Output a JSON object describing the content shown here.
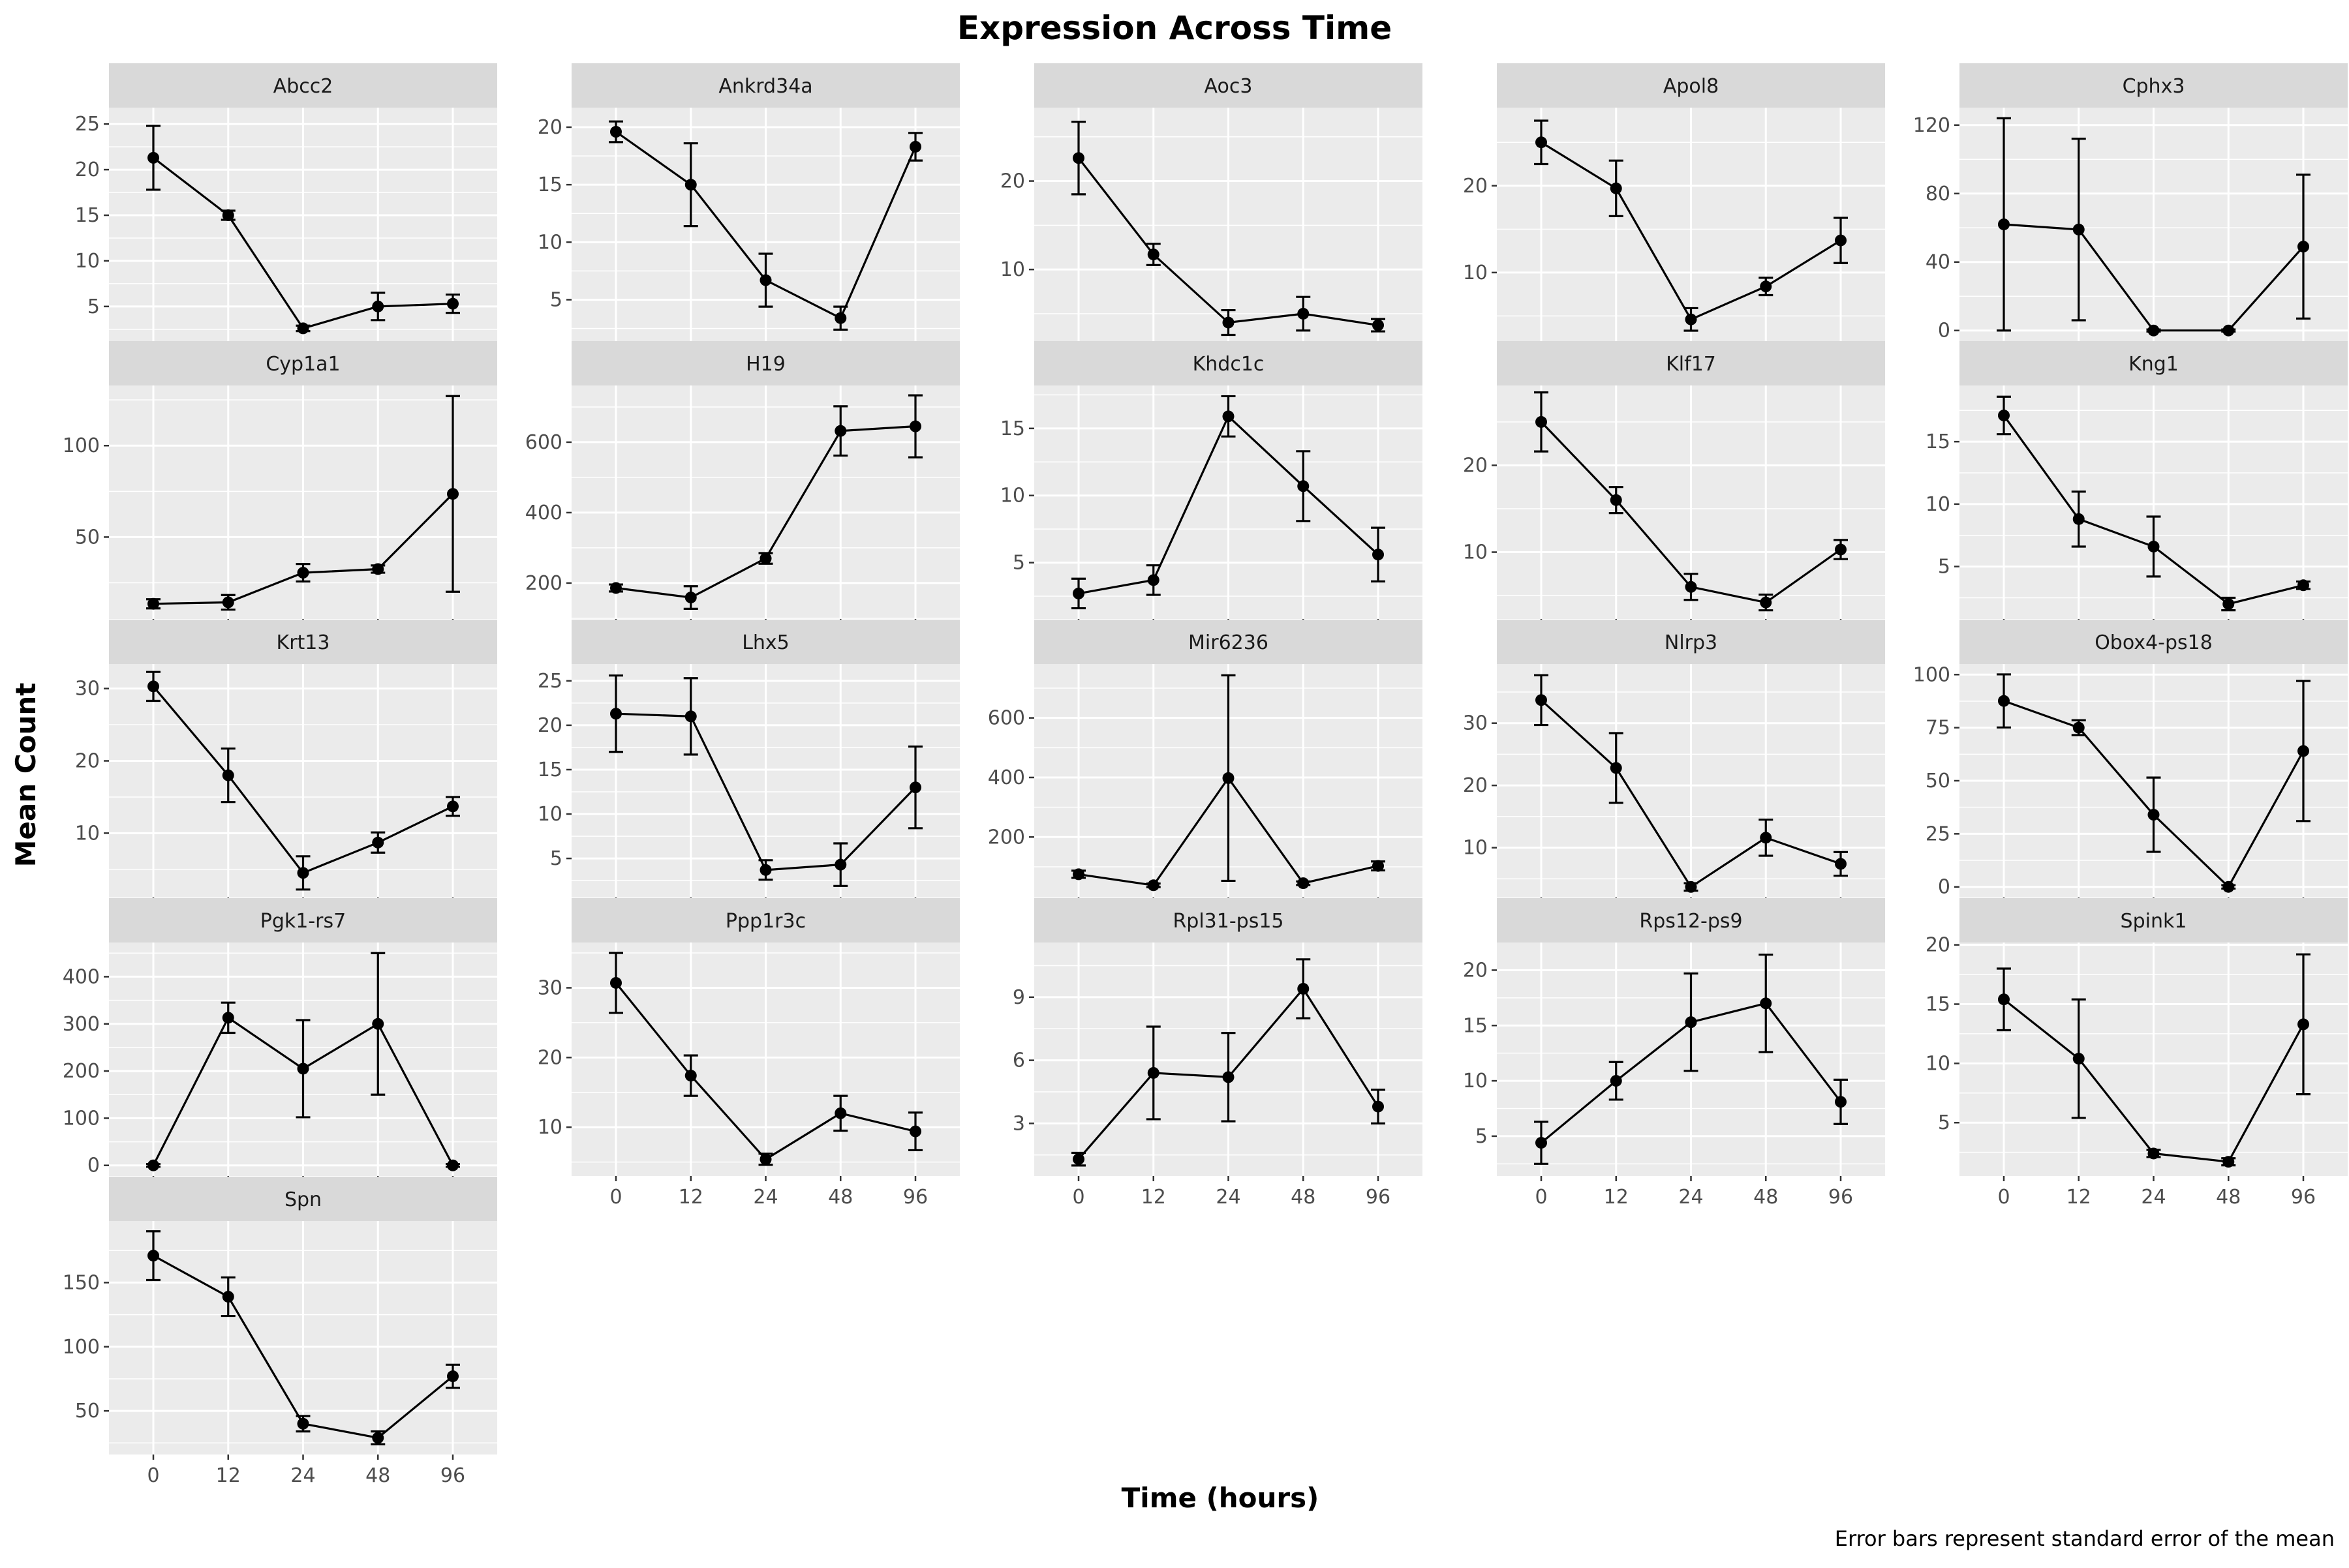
{
  "chart_data": {
    "type": "line",
    "title": "Expression Across Time",
    "xlabel": "Time (hours)",
    "ylabel": "Mean Count",
    "caption": "Error bars represent standard error of the mean",
    "x_ticks": [
      "0",
      "12",
      "24",
      "48",
      "96"
    ],
    "grid": true,
    "panels": [
      {
        "name": "Abcc2",
        "y": [
          21.3,
          15.0,
          2.6,
          5.0,
          5.3
        ],
        "err": [
          3.5,
          0.5,
          0.3,
          1.5,
          1.0
        ],
        "ylim": [
          1.2,
          26.8
        ],
        "yticks": [
          5,
          10,
          15,
          20,
          25
        ]
      },
      {
        "name": "Ankrd34a",
        "y": [
          19.6,
          15.0,
          6.7,
          3.4,
          18.3
        ],
        "err": [
          0.9,
          3.6,
          2.3,
          1.0,
          1.2
        ],
        "ylim": [
          1.4,
          21.7
        ],
        "yticks": [
          5,
          10,
          15,
          20
        ]
      },
      {
        "name": "Aoc3",
        "y": [
          22.6,
          11.7,
          4.0,
          5.0,
          3.7
        ],
        "err": [
          4.1,
          1.2,
          1.4,
          1.9,
          0.7
        ],
        "ylim": [
          1.9,
          28.3
        ],
        "yticks": [
          10,
          20
        ]
      },
      {
        "name": "Apol8",
        "y": [
          25.0,
          19.7,
          4.6,
          8.4,
          13.7
        ],
        "err": [
          2.5,
          3.2,
          1.3,
          1.0,
          2.6
        ],
        "ylim": [
          2.1,
          29.0
        ],
        "yticks": [
          10,
          20
        ]
      },
      {
        "name": "Cphx3",
        "y": [
          62.0,
          59.0,
          0.0,
          0.0,
          49.0
        ],
        "err": [
          62.0,
          53.0,
          0.6,
          0.6,
          42.0
        ],
        "ylim": [
          -6.2,
          130.2
        ],
        "yticks": [
          0,
          40,
          80,
          120
        ]
      },
      {
        "name": "Cyp1a1",
        "y": [
          13.5,
          14.3,
          30.5,
          32.5,
          73.6
        ],
        "err": [
          2.5,
          4.0,
          4.8,
          2.0,
          53.5
        ],
        "ylim": [
          5.2,
          132.9
        ],
        "yticks": [
          50,
          100
        ]
      },
      {
        "name": "H19",
        "y": [
          186.0,
          159.0,
          270.0,
          632.0,
          645.0
        ],
        "err": [
          10.0,
          32.0,
          15.0,
          70.0,
          88.0
        ],
        "ylim": [
          98.0,
          761.0
        ],
        "yticks": [
          200,
          400,
          600
        ]
      },
      {
        "name": "Khdc1c",
        "y": [
          2.7,
          3.7,
          15.9,
          10.7,
          5.6
        ],
        "err": [
          1.1,
          1.1,
          1.5,
          2.6,
          2.0
        ],
        "ylim": [
          0.8,
          18.2
        ],
        "yticks": [
          5,
          10,
          15
        ]
      },
      {
        "name": "Klf17",
        "y": [
          25.0,
          16.0,
          6.0,
          4.2,
          10.3
        ],
        "err": [
          3.4,
          1.5,
          1.5,
          0.9,
          1.1
        ],
        "ylim": [
          2.3,
          29.2
        ],
        "yticks": [
          10,
          20
        ]
      },
      {
        "name": "Kng1",
        "y": [
          17.1,
          8.8,
          6.6,
          2.0,
          3.5
        ],
        "err": [
          1.5,
          2.2,
          2.4,
          0.5,
          0.3
        ],
        "ylim": [
          0.8,
          19.5
        ],
        "yticks": [
          5,
          10,
          15
        ]
      },
      {
        "name": "Krt13",
        "y": [
          30.3,
          18.0,
          4.5,
          8.7,
          13.7
        ],
        "err": [
          2.0,
          3.7,
          2.3,
          1.4,
          1.3
        ],
        "ylim": [
          1.1,
          33.4
        ],
        "yticks": [
          10,
          20,
          30
        ]
      },
      {
        "name": "Lhx5",
        "y": [
          21.3,
          21.0,
          3.7,
          4.3,
          13.0
        ],
        "err": [
          4.3,
          4.3,
          1.1,
          2.4,
          4.6
        ],
        "ylim": [
          0.6,
          26.9
        ],
        "yticks": [
          5,
          10,
          15,
          20,
          25
        ]
      },
      {
        "name": "Mir6236",
        "y": [
          75.0,
          38.0,
          398.0,
          45.0,
          103.0
        ],
        "err": [
          12.0,
          6.0,
          345.0,
          6.0,
          15.0
        ],
        "ylim": [
          -3.0,
          781.0
        ],
        "yticks": [
          200,
          400,
          600
        ]
      },
      {
        "name": "Nlrp3",
        "y": [
          33.7,
          22.8,
          3.7,
          11.6,
          7.4
        ],
        "err": [
          4.0,
          5.6,
          0.6,
          2.9,
          1.9
        ],
        "ylim": [
          2.0,
          39.5
        ],
        "yticks": [
          10,
          20,
          30
        ]
      },
      {
        "name": "Obox4-ps18",
        "y": [
          87.6,
          75.0,
          34.0,
          0.0,
          64.0
        ],
        "err": [
          12.5,
          3.5,
          17.5,
          0.8,
          33.0
        ],
        "ylim": [
          -5.0,
          105.0
        ],
        "yticks": [
          0,
          25,
          50,
          75,
          100
        ]
      },
      {
        "name": "Pgk1-rs7",
        "y": [
          0.0,
          313.0,
          205.0,
          300.0,
          0.0
        ],
        "err": [
          3.0,
          32.0,
          103.0,
          150.0,
          3.0
        ],
        "ylim": [
          -22.5,
          472.5
        ],
        "yticks": [
          0,
          100,
          200,
          300,
          400
        ]
      },
      {
        "name": "Ppp1r3c",
        "y": [
          30.7,
          17.4,
          5.4,
          12.0,
          9.4
        ],
        "err": [
          4.3,
          2.9,
          0.8,
          2.5,
          2.7
        ],
        "ylim": [
          3.0,
          36.5
        ],
        "yticks": [
          10,
          20,
          30
        ]
      },
      {
        "name": "Rpl31-ps15",
        "y": [
          1.3,
          5.4,
          5.2,
          9.4,
          3.8
        ],
        "err": [
          0.3,
          2.2,
          2.1,
          1.4,
          0.8
        ],
        "ylim": [
          0.5,
          11.6
        ],
        "yticks": [
          3,
          6,
          9
        ]
      },
      {
        "name": "Rps12-ps9",
        "y": [
          4.4,
          10.0,
          15.3,
          17.0,
          8.1
        ],
        "err": [
          1.9,
          1.7,
          4.4,
          4.4,
          2.0
        ],
        "ylim": [
          1.4,
          22.5
        ],
        "yticks": [
          5,
          10,
          15,
          20
        ]
      },
      {
        "name": "Spink1",
        "y": [
          15.4,
          10.4,
          2.4,
          1.7,
          13.3
        ],
        "err": [
          2.6,
          5.0,
          0.3,
          0.3,
          5.9
        ],
        "ylim": [
          0.5,
          20.2
        ],
        "yticks": [
          5,
          10,
          15,
          20
        ]
      },
      {
        "name": "Spn",
        "y": [
          171.0,
          139.0,
          40.0,
          29.0,
          77.0
        ],
        "err": [
          19.0,
          15.0,
          6.0,
          5.0,
          9.0
        ],
        "ylim": [
          16.0,
          198.0
        ],
        "yticks": [
          50,
          100,
          150
        ]
      }
    ]
  }
}
